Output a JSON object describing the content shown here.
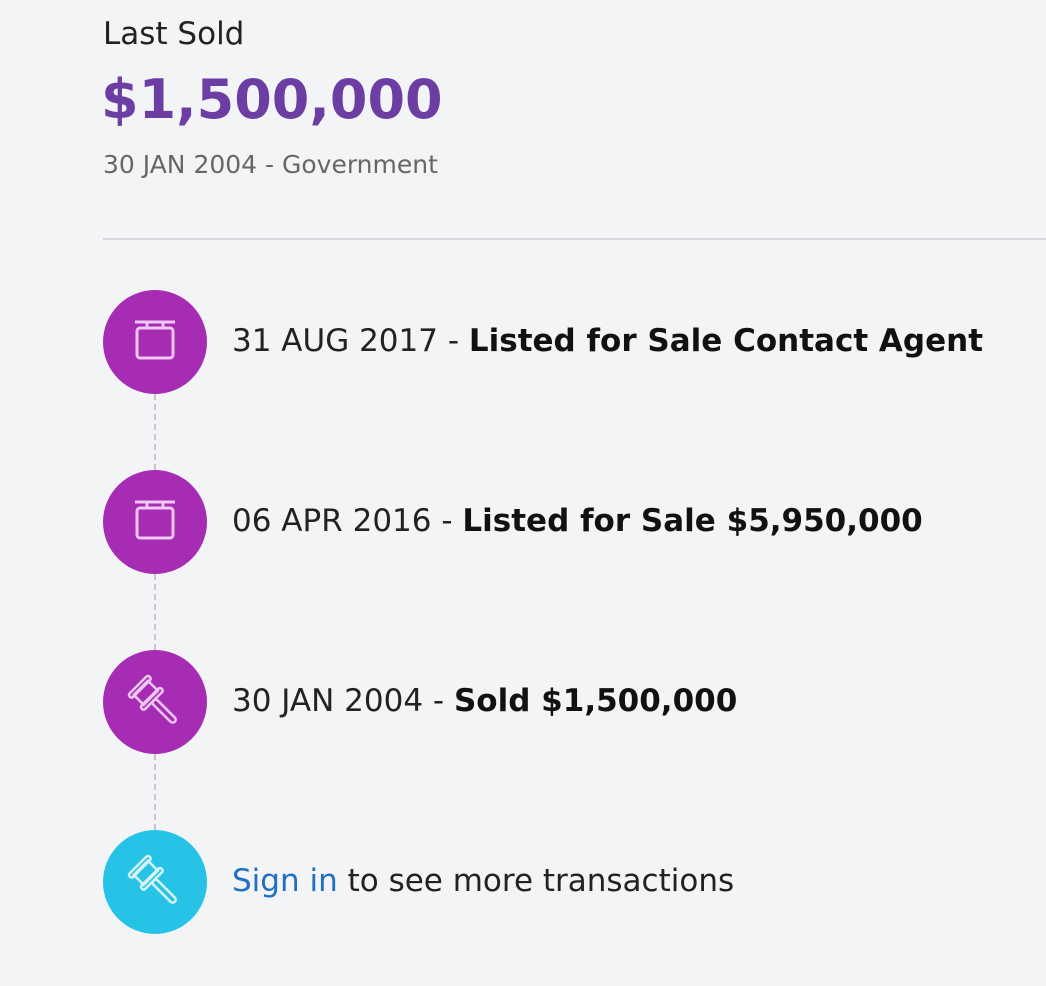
{
  "summary": {
    "label": "Last Sold",
    "price": "$1,500,000",
    "detail": "30 JAN 2004 - Government"
  },
  "colors": {
    "price": "#6c3ea3",
    "event_icon": "#a62cb4",
    "sign_in_icon": "#27c3e6",
    "link": "#1f6fc4"
  },
  "timeline": [
    {
      "icon": "sign-icon",
      "date": "31 AUG 2017",
      "sep": " - ",
      "event": "Listed for Sale Contact Agent"
    },
    {
      "icon": "sign-icon",
      "date": "06 APR 2016",
      "sep": " - ",
      "event": "Listed for Sale $5,950,000"
    },
    {
      "icon": "gavel-icon",
      "date": "30 JAN 2004",
      "sep": " - ",
      "event": "Sold $1,500,000"
    }
  ],
  "sign_in": {
    "icon": "gavel-icon",
    "link": "Sign in",
    "text": " to see more transactions"
  }
}
